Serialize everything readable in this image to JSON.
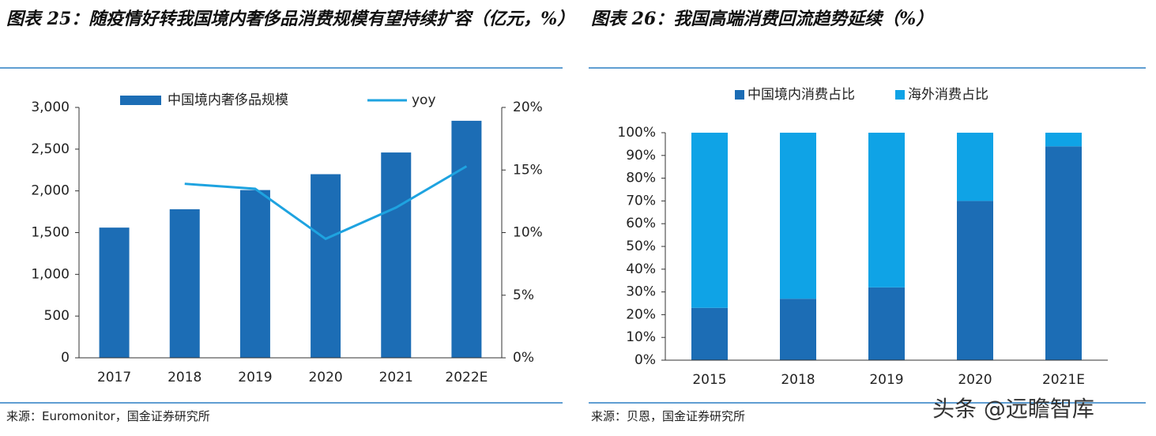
{
  "chart_data": [
    {
      "type": "bar",
      "title": "图表 25：随疫情好转我国境内奢侈品消费规模有望持续扩容（亿元，%）",
      "categories": [
        "2017",
        "2018",
        "2019",
        "2020",
        "2021",
        "2022E"
      ],
      "series": [
        {
          "name": "中国境内奢侈品规模",
          "color": "#1c6db5",
          "values": [
            1560,
            1780,
            2010,
            2200,
            2460,
            2840
          ]
        },
        {
          "name": "yoy",
          "color": "#1ea3e0",
          "axis": "y2",
          "values": [
            null,
            13.9,
            13.5,
            9.5,
            12.0,
            15.3
          ]
        }
      ],
      "ylim": [
        0,
        3000
      ],
      "yticks": [
        0,
        500,
        {
          "value": 1000,
          "label": "1,000"
        },
        {
          "value": 1500,
          "label": "1,500"
        },
        {
          "value": 2000,
          "label": "2,000"
        },
        {
          "value": 2500,
          "label": "2,500"
        },
        {
          "value": 3000,
          "label": "3,000"
        }
      ],
      "y2lim": [
        0,
        20
      ],
      "y2ticks": [
        {
          "value": 0,
          "label": "0%"
        },
        {
          "value": 5,
          "label": "5%"
        },
        {
          "value": 10,
          "label": "10%"
        },
        {
          "value": 15,
          "label": "15%"
        },
        {
          "value": 20,
          "label": "20%"
        }
      ],
      "source": "来源：Euromonitor，国金证券研究所"
    },
    {
      "type": "bar",
      "stacked": true,
      "title": "图表 26：我国高端消费回流趋势延续（%）",
      "categories": [
        "2015",
        "2018",
        "2019",
        "2020",
        "2021E"
      ],
      "series": [
        {
          "name": "中国境内消费占比",
          "color": "#1c6db5",
          "values": [
            23,
            27,
            32,
            70,
            94
          ]
        },
        {
          "name": "海外消费占比",
          "color": "#0fa3e6",
          "values": [
            77,
            73,
            68,
            30,
            6
          ]
        }
      ],
      "ylim": [
        0,
        100
      ],
      "yticks": [
        {
          "value": 0,
          "label": "0%"
        },
        {
          "value": 10,
          "label": "10%"
        },
        {
          "value": 20,
          "label": "20%"
        },
        {
          "value": 30,
          "label": "30%"
        },
        {
          "value": 40,
          "label": "40%"
        },
        {
          "value": 50,
          "label": "50%"
        },
        {
          "value": 60,
          "label": "60%"
        },
        {
          "value": 70,
          "label": "70%"
        },
        {
          "value": 80,
          "label": "80%"
        },
        {
          "value": 90,
          "label": "90%"
        },
        {
          "value": 100,
          "label": "100%"
        }
      ],
      "source": "来源：贝恩，国金证券研究所"
    }
  ],
  "watermark": "头条 @远瞻智库"
}
